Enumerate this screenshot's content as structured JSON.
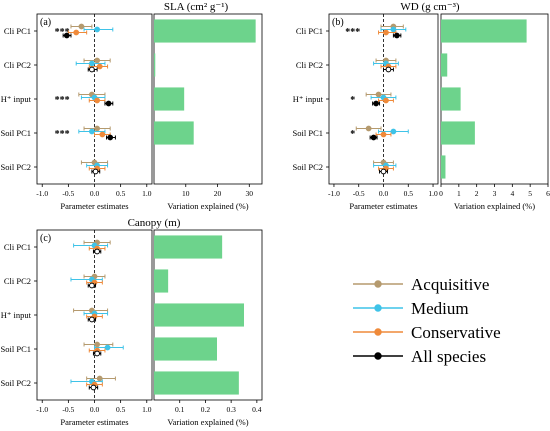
{
  "colors": {
    "acquisitive": "#b59a6e",
    "medium": "#3fc3e8",
    "conservative": "#ef8a3a",
    "all": "#000000",
    "bar": "#6dd38c"
  },
  "legend": [
    "Acquisitive",
    "Medium",
    "Conservative",
    "All species"
  ],
  "chart_data": [
    {
      "type": "forest+bar",
      "panel_label": "(a)",
      "title": "SLA (cm² g⁻¹)",
      "rows": [
        "Cli PC1",
        "Cli PC2",
        "H⁺ input",
        "Soil PC1",
        "Soil PC2"
      ],
      "stars": [
        "***",
        "",
        "***",
        "***",
        ""
      ],
      "estimates": {
        "xlabel": "Parameter estimates",
        "xlim": [
          -1.1,
          1.1
        ],
        "ticks": [
          "-1.0",
          "-0.5",
          "0.0",
          "0.5",
          "1.0"
        ],
        "series": [
          {
            "name": "Acquisitive",
            "est": [
              -0.25,
              0.05,
              -0.05,
              0.05,
              0.0
            ],
            "lo": [
              -0.45,
              -0.2,
              -0.3,
              -0.2,
              -0.25
            ],
            "hi": [
              -0.05,
              0.3,
              0.2,
              0.3,
              0.25
            ]
          },
          {
            "name": "Medium",
            "est": [
              0.05,
              -0.05,
              0.0,
              -0.05,
              0.05
            ],
            "lo": [
              -0.2,
              -0.35,
              -0.25,
              -0.3,
              -0.15
            ],
            "hi": [
              0.35,
              0.2,
              0.2,
              0.2,
              0.25
            ]
          },
          {
            "name": "Conservative",
            "est": [
              -0.35,
              0.1,
              0.05,
              0.15,
              0.05
            ],
            "lo": [
              -0.5,
              -0.1,
              -0.1,
              0.0,
              -0.1
            ],
            "hi": [
              -0.15,
              0.25,
              0.2,
              0.3,
              0.2
            ]
          },
          {
            "name": "All species",
            "est": [
              -0.53,
              -0.05,
              0.27,
              0.3,
              0.02
            ],
            "lo": [
              -0.6,
              -0.12,
              0.2,
              0.23,
              -0.05
            ],
            "hi": [
              -0.45,
              0.05,
              0.35,
              0.4,
              0.1
            ]
          }
        ]
      },
      "variation": {
        "xlabel": "Variation explained (%)",
        "xlim": [
          0,
          34
        ],
        "ticks": [
          "10",
          "20",
          "30"
        ],
        "tick_values": [
          10,
          20,
          30
        ],
        "values": [
          32,
          0.4,
          9.5,
          12.5,
          0
        ]
      }
    },
    {
      "type": "forest+bar",
      "panel_label": "(b)",
      "title": "WD (g cm⁻³)",
      "rows": [
        "Cli PC1",
        "Cli PC2",
        "H⁺ input",
        "Soil PC1",
        "Soil PC2"
      ],
      "stars": [
        "***",
        "",
        "*",
        "*",
        ""
      ],
      "estimates": {
        "xlabel": "Parameter estimates",
        "xlim": [
          -1.1,
          1.1
        ],
        "ticks": [
          "-1.0",
          "-0.5",
          "0.0",
          "0.5",
          "1.0"
        ],
        "series": [
          {
            "name": "Acquisitive",
            "est": [
              0.2,
              0.05,
              -0.1,
              -0.3,
              0.0
            ],
            "lo": [
              -0.05,
              -0.15,
              -0.35,
              -0.55,
              -0.2
            ],
            "hi": [
              0.4,
              0.25,
              0.15,
              -0.05,
              0.2
            ]
          },
          {
            "name": "Medium",
            "est": [
              0.2,
              0.05,
              0.0,
              0.2,
              0.05
            ],
            "lo": [
              -0.05,
              -0.2,
              -0.25,
              -0.1,
              -0.2
            ],
            "hi": [
              0.45,
              0.3,
              0.25,
              0.5,
              0.25
            ]
          },
          {
            "name": "Conservative",
            "est": [
              0.05,
              0.1,
              0.05,
              0.0,
              0.05
            ],
            "lo": [
              -0.1,
              -0.05,
              -0.1,
              -0.15,
              -0.1
            ],
            "hi": [
              0.25,
              0.25,
              0.2,
              0.15,
              0.2
            ]
          },
          {
            "name": "All species",
            "est": [
              0.27,
              0.1,
              -0.15,
              -0.2,
              0.0
            ],
            "lo": [
              0.2,
              0.0,
              -0.22,
              -0.27,
              -0.08
            ],
            "hi": [
              0.35,
              0.2,
              -0.08,
              -0.13,
              0.08
            ]
          }
        ]
      },
      "variation": {
        "xlabel": "Variation explained (%)",
        "xlim": [
          0,
          6
        ],
        "ticks": [
          "0",
          "1",
          "2",
          "3",
          "4",
          "5",
          "6"
        ],
        "tick_values": [
          0,
          1,
          2,
          3,
          4,
          5,
          6
        ],
        "values": [
          4.8,
          0.35,
          1.1,
          1.9,
          0.25
        ]
      }
    },
    {
      "type": "forest+bar",
      "panel_label": "(c)",
      "title": "Canopy (m)",
      "rows": [
        "Cli PC1",
        "Cli PC2",
        "H⁺ input",
        "Soil PC1",
        "Soil PC2"
      ],
      "stars": [
        "",
        "",
        "",
        "",
        ""
      ],
      "estimates": {
        "xlabel": "Parameter estimates",
        "xlim": [
          -1.1,
          1.1
        ],
        "ticks": [
          "-1.0",
          "-0.5",
          "0.0",
          "0.5",
          "1.0"
        ],
        "series": [
          {
            "name": "Acquisitive",
            "est": [
              0.05,
              0.0,
              -0.05,
              0.05,
              0.1
            ],
            "lo": [
              -0.2,
              -0.2,
              -0.4,
              -0.2,
              -0.15
            ],
            "hi": [
              0.3,
              0.2,
              0.25,
              0.35,
              0.4
            ]
          },
          {
            "name": "Medium",
            "est": [
              0.0,
              -0.05,
              0.0,
              0.25,
              -0.05
            ],
            "lo": [
              -0.4,
              -0.45,
              -0.2,
              0.0,
              -0.45
            ],
            "hi": [
              0.25,
              0.15,
              0.25,
              0.55,
              0.15
            ]
          },
          {
            "name": "Conservative",
            "est": [
              0.05,
              0.0,
              0.0,
              0.05,
              0.0
            ],
            "lo": [
              -0.1,
              -0.15,
              -0.15,
              -0.1,
              -0.15
            ],
            "hi": [
              0.2,
              0.15,
              0.15,
              0.2,
              0.15
            ]
          },
          {
            "name": "All species",
            "est": [
              0.05,
              -0.05,
              -0.05,
              0.05,
              -0.02
            ],
            "lo": [
              -0.02,
              -0.12,
              -0.12,
              -0.02,
              -0.1
            ],
            "hi": [
              0.12,
              0.02,
              0.02,
              0.12,
              0.06
            ]
          }
        ]
      },
      "variation": {
        "xlabel": "Variation explained (%)",
        "xlim": [
          0,
          0.42
        ],
        "ticks": [
          "0.1",
          "0.2",
          "0.3",
          "0.4"
        ],
        "tick_values": [
          0.1,
          0.2,
          0.3,
          0.4
        ],
        "values": [
          0.265,
          0.055,
          0.35,
          0.245,
          0.33
        ]
      }
    }
  ]
}
